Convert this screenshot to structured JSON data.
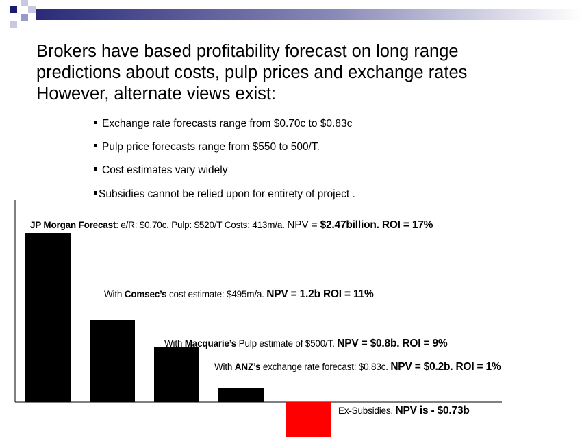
{
  "slide": {
    "title_lines": [
      "Brokers have based profitability forecast on long range",
      "predictions about costs, pulp prices and exchange rates",
      "However, alternate views exist:"
    ],
    "bullets": [
      "Exchange rate forecasts range from $0.70c to $0.83c",
      "Pulp price forecasts range from $550 to 500/T.",
      "Cost estimates vary widely",
      "Subsidies cannot be relied upon for entirety of project ."
    ]
  },
  "chart_data": {
    "type": "bar",
    "categories": [
      "JP Morgan Forecast",
      "With Comsec's cost estimate",
      "With Macquarie's Pulp estimate",
      "With ANZ's exchange rate forecast",
      "Ex-Subsidies"
    ],
    "values": [
      2.47,
      1.2,
      0.8,
      0.2,
      -0.73
    ],
    "bar_colors": [
      "#000000",
      "#000000",
      "#000000",
      "#000000",
      "#ff0000"
    ],
    "annotations": [
      {
        "bold_lead": "JP Morgan Forecast",
        "text": ": e/R: $0.70c.  Pulp: $520/T  Costs: 413m/a. ",
        "npv_prefix": "NPV = ",
        "npv_bold": "$2.47billion.  ROI = 17%"
      },
      {
        "lead": "With ",
        "bold_lead": "Comsec’s",
        "text": " cost estimate: $495m/a. ",
        "npv_prefix": "",
        "npv_bold": "NPV = 1.2b  ROI = 11%"
      },
      {
        "lead": "With ",
        "bold_lead": "Macquarie’s",
        "text": " Pulp estimate of $500/T. ",
        "npv_prefix": "",
        "npv_bold": "NPV = $0.8b. ROI = 9%"
      },
      {
        "lead": "With ",
        "bold_lead": "ANZ’s",
        "text": " exchange rate forecast: $0.83c. ",
        "npv_prefix": "",
        "npv_bold": "NPV = $0.2b. ROI = 1%"
      },
      {
        "lead": "",
        "bold_lead": "",
        "text": "Ex-Subsidies. ",
        "npv_prefix": "",
        "npv_bold": "NPV is - $0.73b"
      }
    ]
  }
}
